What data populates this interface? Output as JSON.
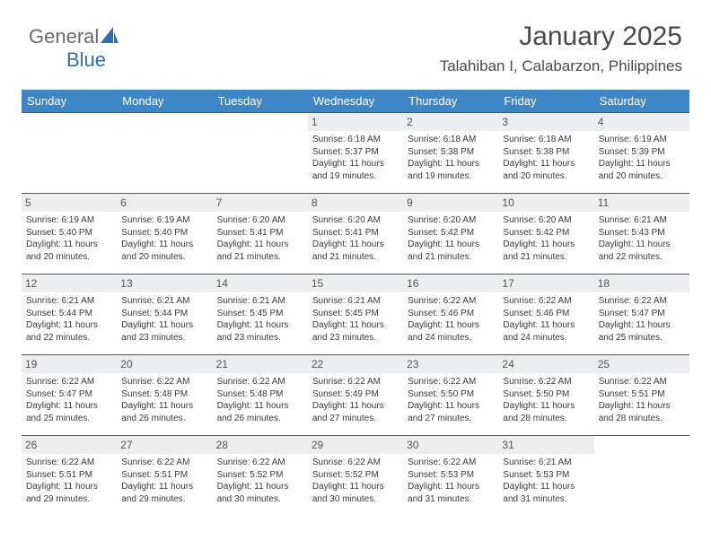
{
  "logo": {
    "part1": "General",
    "part2": "Blue"
  },
  "header": {
    "title": "January 2025",
    "location": "Talahiban I, Calabarzon, Philippines"
  },
  "colors": {
    "header_bg": "#3d87c7",
    "header_text": "#ffffff",
    "row_border": "#2f5f8f",
    "daynum_bg": "#eceeef",
    "logo_gray": "#6a6a6a",
    "logo_blue": "#2b6fb5",
    "text": "#3a3a3a"
  },
  "day_names": [
    "Sunday",
    "Monday",
    "Tuesday",
    "Wednesday",
    "Thursday",
    "Friday",
    "Saturday"
  ],
  "weeks": [
    [
      null,
      null,
      null,
      {
        "n": "1",
        "sr": "6:18 AM",
        "ss": "5:37 PM",
        "dl": "11 hours and 19 minutes."
      },
      {
        "n": "2",
        "sr": "6:18 AM",
        "ss": "5:38 PM",
        "dl": "11 hours and 19 minutes."
      },
      {
        "n": "3",
        "sr": "6:18 AM",
        "ss": "5:38 PM",
        "dl": "11 hours and 20 minutes."
      },
      {
        "n": "4",
        "sr": "6:19 AM",
        "ss": "5:39 PM",
        "dl": "11 hours and 20 minutes."
      }
    ],
    [
      {
        "n": "5",
        "sr": "6:19 AM",
        "ss": "5:40 PM",
        "dl": "11 hours and 20 minutes."
      },
      {
        "n": "6",
        "sr": "6:19 AM",
        "ss": "5:40 PM",
        "dl": "11 hours and 20 minutes."
      },
      {
        "n": "7",
        "sr": "6:20 AM",
        "ss": "5:41 PM",
        "dl": "11 hours and 21 minutes."
      },
      {
        "n": "8",
        "sr": "6:20 AM",
        "ss": "5:41 PM",
        "dl": "11 hours and 21 minutes."
      },
      {
        "n": "9",
        "sr": "6:20 AM",
        "ss": "5:42 PM",
        "dl": "11 hours and 21 minutes."
      },
      {
        "n": "10",
        "sr": "6:20 AM",
        "ss": "5:42 PM",
        "dl": "11 hours and 21 minutes."
      },
      {
        "n": "11",
        "sr": "6:21 AM",
        "ss": "5:43 PM",
        "dl": "11 hours and 22 minutes."
      }
    ],
    [
      {
        "n": "12",
        "sr": "6:21 AM",
        "ss": "5:44 PM",
        "dl": "11 hours and 22 minutes."
      },
      {
        "n": "13",
        "sr": "6:21 AM",
        "ss": "5:44 PM",
        "dl": "11 hours and 23 minutes."
      },
      {
        "n": "14",
        "sr": "6:21 AM",
        "ss": "5:45 PM",
        "dl": "11 hours and 23 minutes."
      },
      {
        "n": "15",
        "sr": "6:21 AM",
        "ss": "5:45 PM",
        "dl": "11 hours and 23 minutes."
      },
      {
        "n": "16",
        "sr": "6:22 AM",
        "ss": "5:46 PM",
        "dl": "11 hours and 24 minutes."
      },
      {
        "n": "17",
        "sr": "6:22 AM",
        "ss": "5:46 PM",
        "dl": "11 hours and 24 minutes."
      },
      {
        "n": "18",
        "sr": "6:22 AM",
        "ss": "5:47 PM",
        "dl": "11 hours and 25 minutes."
      }
    ],
    [
      {
        "n": "19",
        "sr": "6:22 AM",
        "ss": "5:47 PM",
        "dl": "11 hours and 25 minutes."
      },
      {
        "n": "20",
        "sr": "6:22 AM",
        "ss": "5:48 PM",
        "dl": "11 hours and 26 minutes."
      },
      {
        "n": "21",
        "sr": "6:22 AM",
        "ss": "5:48 PM",
        "dl": "11 hours and 26 minutes."
      },
      {
        "n": "22",
        "sr": "6:22 AM",
        "ss": "5:49 PM",
        "dl": "11 hours and 27 minutes."
      },
      {
        "n": "23",
        "sr": "6:22 AM",
        "ss": "5:50 PM",
        "dl": "11 hours and 27 minutes."
      },
      {
        "n": "24",
        "sr": "6:22 AM",
        "ss": "5:50 PM",
        "dl": "11 hours and 28 minutes."
      },
      {
        "n": "25",
        "sr": "6:22 AM",
        "ss": "5:51 PM",
        "dl": "11 hours and 28 minutes."
      }
    ],
    [
      {
        "n": "26",
        "sr": "6:22 AM",
        "ss": "5:51 PM",
        "dl": "11 hours and 29 minutes."
      },
      {
        "n": "27",
        "sr": "6:22 AM",
        "ss": "5:51 PM",
        "dl": "11 hours and 29 minutes."
      },
      {
        "n": "28",
        "sr": "6:22 AM",
        "ss": "5:52 PM",
        "dl": "11 hours and 30 minutes."
      },
      {
        "n": "29",
        "sr": "6:22 AM",
        "ss": "5:52 PM",
        "dl": "11 hours and 30 minutes."
      },
      {
        "n": "30",
        "sr": "6:22 AM",
        "ss": "5:53 PM",
        "dl": "11 hours and 31 minutes."
      },
      {
        "n": "31",
        "sr": "6:21 AM",
        "ss": "5:53 PM",
        "dl": "11 hours and 31 minutes."
      },
      null
    ]
  ],
  "labels": {
    "sunrise": "Sunrise: ",
    "sunset": "Sunset: ",
    "daylight": "Daylight: "
  }
}
